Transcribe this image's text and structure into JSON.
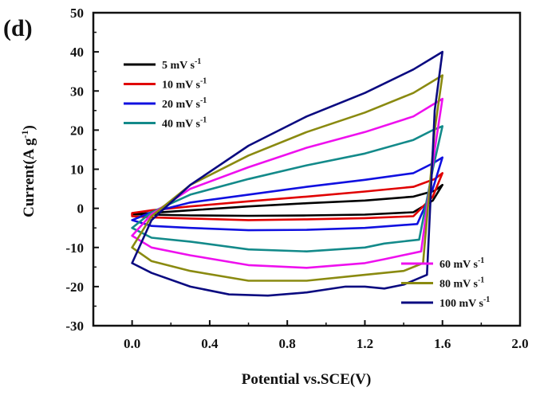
{
  "chart_data": {
    "type": "line",
    "panel_label": "(d)",
    "xlabel": "Potential vs.SCE(V)",
    "ylabel": "Current(A g-1)",
    "ylabel_main": "Current(A g",
    "ylabel_sup": "-1",
    "ylabel_close": ")",
    "xlim": [
      -0.2,
      2.0
    ],
    "ylim": [
      -30,
      50
    ],
    "xticks": [
      0.0,
      0.4,
      0.8,
      1.2,
      1.6,
      2.0
    ],
    "xtick_labels": [
      "0.0",
      "0.4",
      "0.8",
      "1.2",
      "1.6",
      "2.0"
    ],
    "yticks": [
      -30,
      -20,
      -10,
      0,
      10,
      20,
      30,
      40,
      50
    ],
    "ytick_labels": [
      "-30",
      "-20",
      "-10",
      "0",
      "10",
      "20",
      "30",
      "40",
      "50"
    ],
    "grid": false,
    "legend": {
      "groups": [
        {
          "placement": "top-left",
          "series": [
            0,
            1,
            2,
            3
          ]
        },
        {
          "placement": "bottom-right",
          "series": [
            4,
            5,
            6
          ]
        }
      ]
    },
    "series": [
      {
        "name": "5 mV s-1",
        "name_main": "5 mV s",
        "name_sup": "-1",
        "color": "#000000",
        "upper": [
          [
            0.0,
            -1.5
          ],
          [
            0.3,
            -0.5
          ],
          [
            0.6,
            0.5
          ],
          [
            0.9,
            1.3
          ],
          [
            1.2,
            2.0
          ],
          [
            1.45,
            3.0
          ],
          [
            1.56,
            4.5
          ],
          [
            1.6,
            6.0
          ]
        ],
        "lower": [
          [
            1.6,
            6.0
          ],
          [
            1.55,
            2.0
          ],
          [
            1.45,
            -1.0
          ],
          [
            1.2,
            -1.6
          ],
          [
            0.9,
            -1.8
          ],
          [
            0.6,
            -1.9
          ],
          [
            0.3,
            -1.8
          ],
          [
            0.0,
            -1.5
          ]
        ]
      },
      {
        "name": "10 mV s-1",
        "name_main": "10 mV s",
        "name_sup": "-1",
        "color": "#e00000",
        "upper": [
          [
            0.0,
            -1.2
          ],
          [
            0.1,
            -0.5
          ],
          [
            0.3,
            0.5
          ],
          [
            0.6,
            1.8
          ],
          [
            0.9,
            3.0
          ],
          [
            1.2,
            4.3
          ],
          [
            1.45,
            5.5
          ],
          [
            1.56,
            7.5
          ],
          [
            1.6,
            9.0
          ]
        ],
        "lower": [
          [
            1.6,
            9.0
          ],
          [
            1.55,
            3.0
          ],
          [
            1.45,
            -2.0
          ],
          [
            1.2,
            -2.5
          ],
          [
            0.9,
            -2.8
          ],
          [
            0.6,
            -3.0
          ],
          [
            0.3,
            -2.6
          ],
          [
            0.1,
            -2.3
          ],
          [
            0.0,
            -2.0
          ]
        ]
      },
      {
        "name": "20 mV s-1",
        "name_main": "20 mV s",
        "name_sup": "-1",
        "color": "#1010e0",
        "upper": [
          [
            0.0,
            -3.0
          ],
          [
            0.1,
            -1.0
          ],
          [
            0.3,
            1.5
          ],
          [
            0.6,
            3.5
          ],
          [
            0.9,
            5.5
          ],
          [
            1.2,
            7.3
          ],
          [
            1.45,
            9.0
          ],
          [
            1.55,
            11.5
          ],
          [
            1.6,
            13.0
          ]
        ],
        "lower": [
          [
            1.6,
            13.0
          ],
          [
            1.55,
            5.0
          ],
          [
            1.47,
            -4.0
          ],
          [
            1.2,
            -5.0
          ],
          [
            0.9,
            -5.5
          ],
          [
            0.6,
            -5.6
          ],
          [
            0.3,
            -5.0
          ],
          [
            0.1,
            -4.5
          ],
          [
            0.0,
            -3.0
          ]
        ]
      },
      {
        "name": "40 mV s-1",
        "name_main": "40 mV s",
        "name_sup": "-1",
        "color": "#138a8a",
        "upper": [
          [
            0.0,
            -5.0
          ],
          [
            0.1,
            -1.0
          ],
          [
            0.3,
            3.5
          ],
          [
            0.6,
            7.5
          ],
          [
            0.9,
            11.0
          ],
          [
            1.2,
            14.0
          ],
          [
            1.45,
            17.5
          ],
          [
            1.55,
            20.0
          ],
          [
            1.6,
            21.0
          ]
        ],
        "lower": [
          [
            1.6,
            21.0
          ],
          [
            1.55,
            10.0
          ],
          [
            1.48,
            -8.0
          ],
          [
            1.3,
            -9.0
          ],
          [
            1.2,
            -10.0
          ],
          [
            0.9,
            -11.0
          ],
          [
            0.6,
            -10.5
          ],
          [
            0.3,
            -8.5
          ],
          [
            0.1,
            -7.5
          ],
          [
            0.0,
            -5.0
          ]
        ]
      },
      {
        "name": "60 mV s-1",
        "name_main": "60 mV s",
        "name_sup": "-1",
        "color": "#ee10ee",
        "upper": [
          [
            0.0,
            -7.0
          ],
          [
            0.1,
            -1.5
          ],
          [
            0.3,
            5.0
          ],
          [
            0.6,
            10.5
          ],
          [
            0.9,
            15.5
          ],
          [
            1.2,
            19.5
          ],
          [
            1.45,
            23.5
          ],
          [
            1.55,
            26.5
          ],
          [
            1.6,
            28.0
          ]
        ],
        "lower": [
          [
            1.6,
            28.0
          ],
          [
            1.56,
            15.0
          ],
          [
            1.49,
            -11.0
          ],
          [
            1.3,
            -13.0
          ],
          [
            1.2,
            -14.0
          ],
          [
            0.9,
            -15.2
          ],
          [
            0.6,
            -14.5
          ],
          [
            0.3,
            -12.0
          ],
          [
            0.1,
            -10.0
          ],
          [
            0.0,
            -7.0
          ]
        ]
      },
      {
        "name": "80 mV s-1",
        "name_main": "80 mV s",
        "name_sup": "-1",
        "color": "#8a8a10",
        "upper": [
          [
            0.0,
            -10.0
          ],
          [
            0.1,
            -2.0
          ],
          [
            0.3,
            6.0
          ],
          [
            0.6,
            13.5
          ],
          [
            0.9,
            19.5
          ],
          [
            1.2,
            24.5
          ],
          [
            1.45,
            29.5
          ],
          [
            1.55,
            32.5
          ],
          [
            1.6,
            34.0
          ]
        ],
        "lower": [
          [
            1.6,
            34.0
          ],
          [
            1.56,
            20.0
          ],
          [
            1.5,
            -14.0
          ],
          [
            1.4,
            -16.0
          ],
          [
            1.2,
            -17.0
          ],
          [
            0.9,
            -18.5
          ],
          [
            0.6,
            -18.5
          ],
          [
            0.3,
            -16.0
          ],
          [
            0.1,
            -13.5
          ],
          [
            0.0,
            -10.0
          ]
        ]
      },
      {
        "name": "100 mV s-1",
        "name_main": "100 mV s",
        "name_sup": "-1",
        "color": "#0a0a80",
        "upper": [
          [
            0.0,
            -14.0
          ],
          [
            0.1,
            -3.0
          ],
          [
            0.3,
            6.0
          ],
          [
            0.6,
            16.0
          ],
          [
            0.9,
            23.5
          ],
          [
            1.2,
            29.5
          ],
          [
            1.45,
            35.5
          ],
          [
            1.55,
            38.5
          ],
          [
            1.6,
            40.0
          ]
        ],
        "lower": [
          [
            1.6,
            40.0
          ],
          [
            1.56,
            25.0
          ],
          [
            1.52,
            -17.0
          ],
          [
            1.4,
            -19.5
          ],
          [
            1.3,
            -20.5
          ],
          [
            1.2,
            -20.0
          ],
          [
            1.1,
            -20.0
          ],
          [
            0.9,
            -21.5
          ],
          [
            0.7,
            -22.3
          ],
          [
            0.5,
            -22.0
          ],
          [
            0.3,
            -20.0
          ],
          [
            0.1,
            -16.5
          ],
          [
            0.0,
            -14.0
          ]
        ]
      }
    ]
  }
}
